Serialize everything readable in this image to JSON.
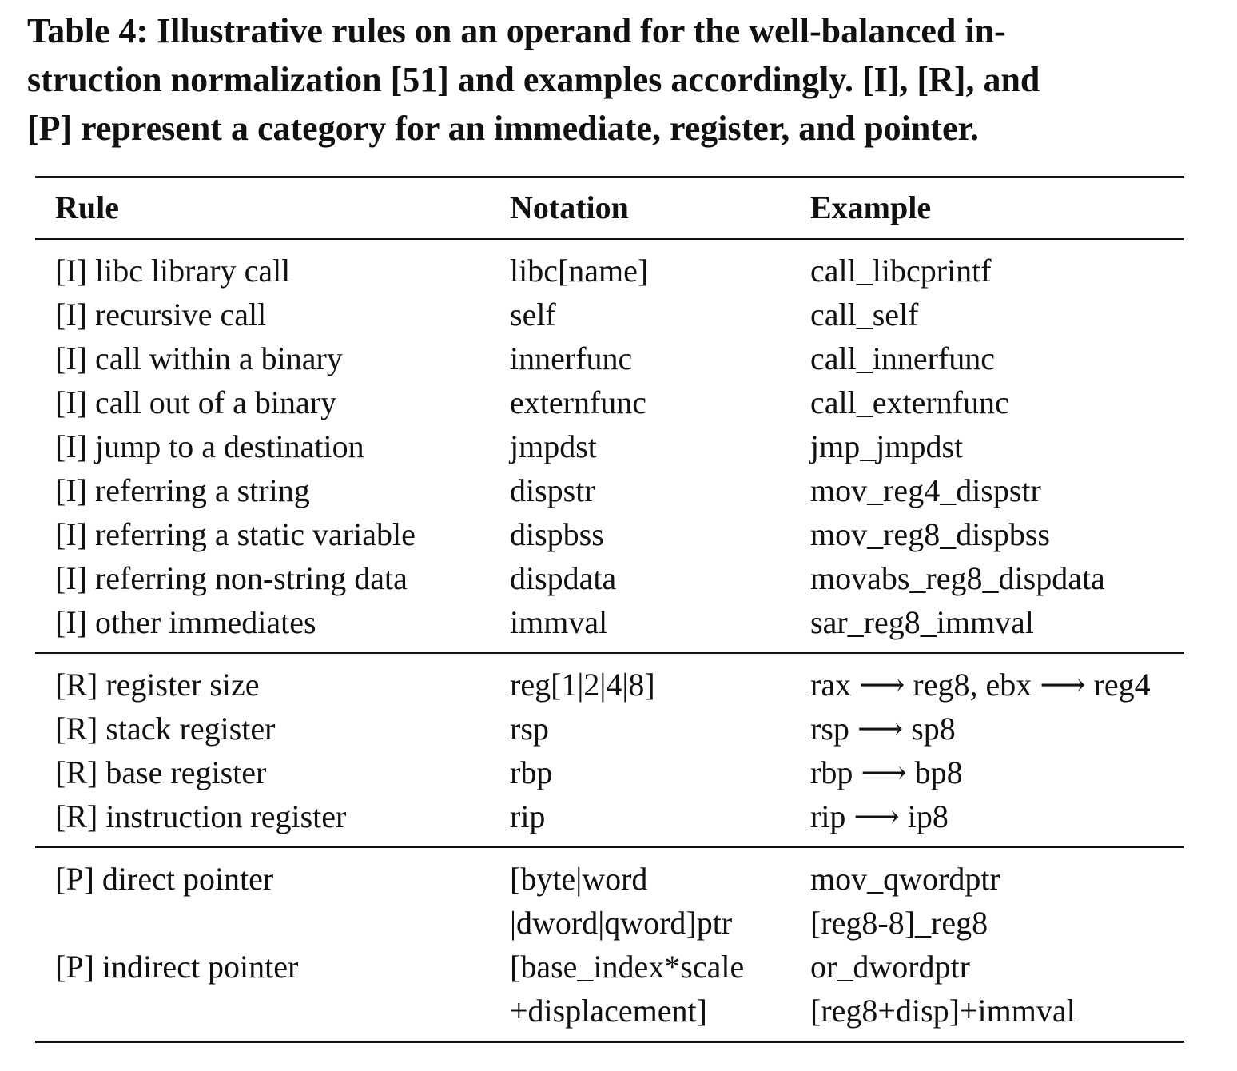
{
  "caption": {
    "lines": [
      "Table 4: Illustrative rules on an operand for the well-balanced in-",
      "struction normalization [51] and examples accordingly. [I], [R], and",
      "[P] represent a category for an immediate, register, and pointer."
    ]
  },
  "table": {
    "headers": {
      "rule": "Rule",
      "notation": "Notation",
      "example": "Example"
    },
    "immediate_rows": [
      {
        "rule": "[I] libc library call",
        "notation": "libc[name]",
        "example": "call_libcprintf"
      },
      {
        "rule": "[I] recursive call",
        "notation": "self",
        "example": "call_self"
      },
      {
        "rule": "[I] call within a binary",
        "notation": "innerfunc",
        "example": "call_innerfunc"
      },
      {
        "rule": "[I] call out of a binary",
        "notation": "externfunc",
        "example": "call_externfunc"
      },
      {
        "rule": "[I] jump to a destination",
        "notation": "jmpdst",
        "example": "jmp_jmpdst"
      },
      {
        "rule": "[I] referring a string",
        "notation": "dispstr",
        "example": "mov_reg4_dispstr"
      },
      {
        "rule": "[I] referring a static variable",
        "notation": "dispbss",
        "example": "mov_reg8_dispbss"
      },
      {
        "rule": "[I] referring non-string data",
        "notation": "dispdata",
        "example": "movabs_reg8_dispdata"
      },
      {
        "rule": "[I] other immediates",
        "notation": "immval",
        "example": "sar_reg8_immval"
      }
    ],
    "register_rows": [
      {
        "rule": "[R] register size",
        "notation": "reg[1|2|4|8]",
        "example": "rax ⟶ reg8, ebx ⟶ reg4"
      },
      {
        "rule": "[R] stack register",
        "notation": "rsp",
        "example": "rsp ⟶ sp8"
      },
      {
        "rule": "[R] base register",
        "notation": "rbp",
        "example": "rbp ⟶ bp8"
      },
      {
        "rule": "[R] instruction register",
        "notation": "rip",
        "example": "rip ⟶ ip8"
      }
    ],
    "pointer_rows": [
      {
        "rule": "[P] direct pointer",
        "notation_lines": [
          "[byte|word",
          "|dword|qword]ptr"
        ],
        "example_lines": [
          "mov_qwordptr",
          "[reg8-8]_reg8"
        ]
      },
      {
        "rule": "[P] indirect pointer",
        "notation_lines": [
          "[base_index*scale",
          "+displacement]"
        ],
        "example_lines": [
          "or_dwordptr",
          "[reg8+disp]+immval"
        ]
      }
    ]
  }
}
